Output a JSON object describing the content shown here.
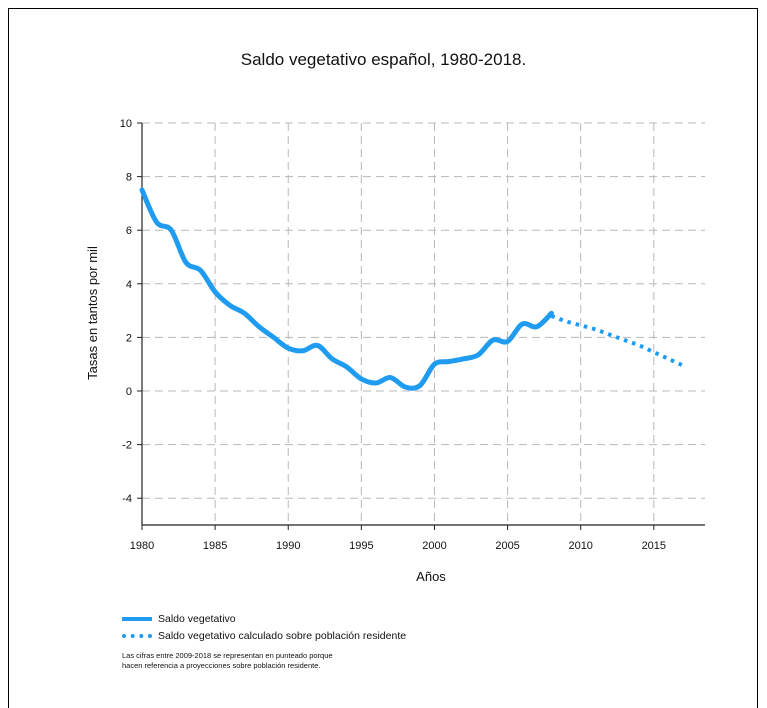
{
  "chart_data": {
    "type": "line",
    "title": "Saldo vegetativo español, 1980-2018.",
    "xlabel": "Años",
    "ylabel": "Tasas en tantos por mil",
    "xlim": [
      1980,
      2018.5
    ],
    "ylim": [
      -5,
      10
    ],
    "x_ticks": [
      "1980",
      "1985",
      "1990",
      "1995",
      "2000",
      "2005",
      "2010",
      "2015"
    ],
    "y_ticks": [
      "10",
      "8",
      "6",
      "4",
      "2",
      "0",
      "-2",
      "-4"
    ],
    "grid": true,
    "series": [
      {
        "name": "Saldo vegetativo",
        "style": "solid",
        "color": "#1f9bf0",
        "x": [
          1980,
          1981,
          1982,
          1983,
          1984,
          1985,
          1986,
          1987,
          1988,
          1989,
          1990,
          1991,
          1992,
          1993,
          1994,
          1995,
          1996,
          1997,
          1998,
          1999,
          2000,
          2001,
          2002,
          2003,
          2004,
          2005,
          2006,
          2007,
          2008
        ],
        "values": [
          7.5,
          6.3,
          6.0,
          4.8,
          4.5,
          3.7,
          3.2,
          2.9,
          2.4,
          2.0,
          1.6,
          1.5,
          1.7,
          1.2,
          0.9,
          0.45,
          0.3,
          0.5,
          0.15,
          0.2,
          1.0,
          1.1,
          1.2,
          1.35,
          1.9,
          1.85,
          2.5,
          2.4,
          2.9
        ]
      },
      {
        "name": "Saldo vegetativo calculado sobre población residente",
        "style": "dotted",
        "color": "#1f9bf0",
        "x": [
          2008,
          2009,
          2010,
          2011,
          2012,
          2013,
          2014,
          2015,
          2016,
          2017
        ],
        "values": [
          2.8,
          2.6,
          2.45,
          2.3,
          2.1,
          1.9,
          1.7,
          1.45,
          1.2,
          0.95
        ]
      }
    ],
    "legend": [
      "Saldo vegetativo",
      "Saldo vegetativo calculado sobre población residente"
    ],
    "note": [
      "Las cifras entre 2009-2018 se representan en punteado porque",
      "hacen referencia a proyecciones sobre población residente."
    ]
  }
}
